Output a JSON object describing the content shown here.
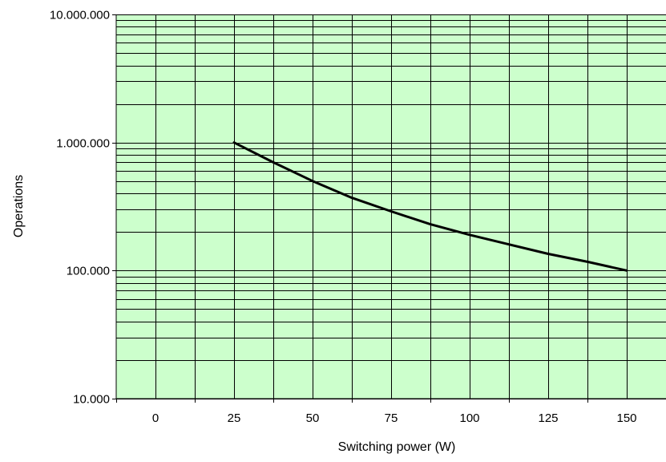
{
  "chart_data": {
    "type": "line",
    "title": "",
    "xlabel": "Switching power  (W)",
    "ylabel": "Operations",
    "x_scale": "linear",
    "y_scale": "log",
    "xlim": [
      -12.5,
      162.5
    ],
    "ylim": [
      10000,
      10000000
    ],
    "x_ticks": [
      0,
      25,
      50,
      75,
      100,
      125,
      150
    ],
    "x_tick_labels": [
      "0",
      "25",
      "50",
      "75",
      "100",
      "125",
      "150"
    ],
    "y_ticks": [
      10000,
      100000,
      1000000,
      10000000
    ],
    "y_tick_labels": [
      "10.000",
      "100.000",
      "1.000.000",
      "10.000.000"
    ],
    "grid": true,
    "legend": "none",
    "plot_background": "#ccffcc",
    "grid_color": "#000000",
    "series": [
      {
        "color": "#000000",
        "x": [
          25,
          37.5,
          50,
          62.5,
          75,
          87.5,
          100,
          112.5,
          125,
          137.5,
          150
        ],
        "y": [
          1000000,
          700000,
          500000,
          370000,
          290000,
          230000,
          190000,
          160000,
          135000,
          117000,
          100000
        ]
      }
    ]
  }
}
